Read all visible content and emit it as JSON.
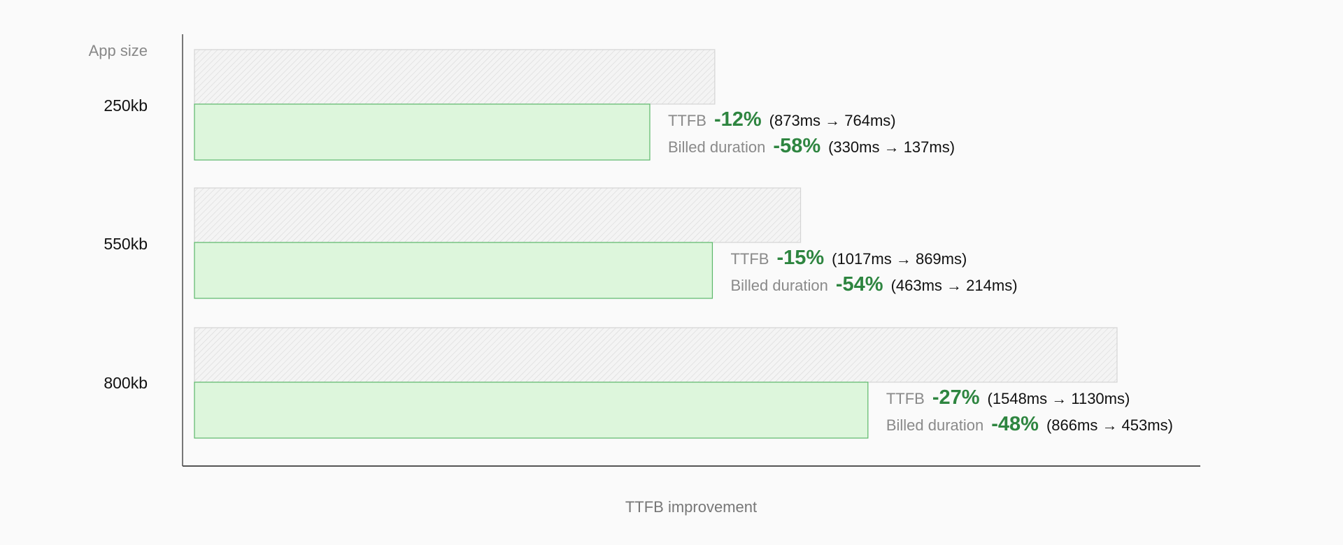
{
  "chart_data": {
    "type": "bar",
    "orientation": "horizontal",
    "ylabel": "App size",
    "xlabel": "TTFB improvement",
    "categories": [
      "250kb",
      "550kb",
      "800kb"
    ],
    "series": [
      {
        "values": [
          873,
          1017,
          1548
        ],
        "style": "hatched-gray"
      },
      {
        "values": [
          764,
          869,
          1130
        ],
        "style": "green"
      }
    ],
    "annotations": [
      {
        "ttfb_label": "TTFB",
        "ttfb_pct": "-12%",
        "ttfb_detail": "(873ms → 764ms)",
        "billed_label": "Billed duration",
        "billed_pct": "-58%",
        "billed_detail": "(330ms → 137ms)"
      },
      {
        "ttfb_label": "TTFB",
        "ttfb_pct": "-15%",
        "ttfb_detail": "(1017ms → 869ms)",
        "billed_label": "Billed duration",
        "billed_pct": "-54%",
        "billed_detail": "(463ms → 214ms)"
      },
      {
        "ttfb_label": "TTFB",
        "ttfb_pct": "-27%",
        "ttfb_detail": "(1548ms → 1130ms)",
        "billed_label": "Billed duration",
        "billed_pct": "-48%",
        "billed_detail": "(866ms → 453ms)"
      }
    ],
    "grid": false,
    "colors": {
      "before_fill": "#f3f3f3",
      "before_hatch": "#d6d6d6",
      "after_fill": "#ddf6dc",
      "after_stroke": "#5cb86a",
      "pct": "#2e8540"
    }
  }
}
